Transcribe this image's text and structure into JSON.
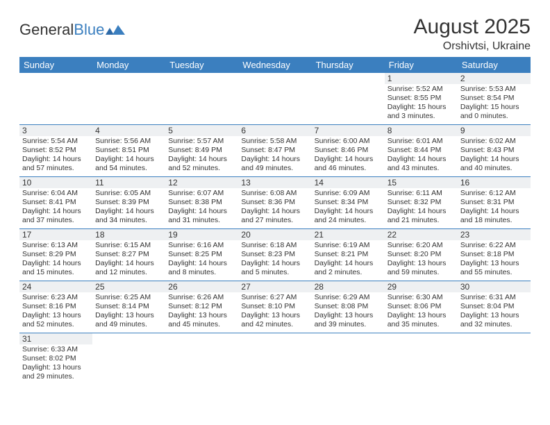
{
  "logo": {
    "text_general": "General",
    "text_blue": "Blue"
  },
  "title": "August 2025",
  "location": "Orshivtsi, Ukraine",
  "header_bg": "#3b7fbf",
  "daynum_bg": "#eef0f2",
  "days_of_week": [
    "Sunday",
    "Monday",
    "Tuesday",
    "Wednesday",
    "Thursday",
    "Friday",
    "Saturday"
  ],
  "weeks": [
    [
      null,
      null,
      null,
      null,
      null,
      {
        "n": "1",
        "sr": "Sunrise: 5:52 AM",
        "ss": "Sunset: 8:55 PM",
        "d1": "Daylight: 15 hours",
        "d2": "and 3 minutes."
      },
      {
        "n": "2",
        "sr": "Sunrise: 5:53 AM",
        "ss": "Sunset: 8:54 PM",
        "d1": "Daylight: 15 hours",
        "d2": "and 0 minutes."
      }
    ],
    [
      {
        "n": "3",
        "sr": "Sunrise: 5:54 AM",
        "ss": "Sunset: 8:52 PM",
        "d1": "Daylight: 14 hours",
        "d2": "and 57 minutes."
      },
      {
        "n": "4",
        "sr": "Sunrise: 5:56 AM",
        "ss": "Sunset: 8:51 PM",
        "d1": "Daylight: 14 hours",
        "d2": "and 54 minutes."
      },
      {
        "n": "5",
        "sr": "Sunrise: 5:57 AM",
        "ss": "Sunset: 8:49 PM",
        "d1": "Daylight: 14 hours",
        "d2": "and 52 minutes."
      },
      {
        "n": "6",
        "sr": "Sunrise: 5:58 AM",
        "ss": "Sunset: 8:47 PM",
        "d1": "Daylight: 14 hours",
        "d2": "and 49 minutes."
      },
      {
        "n": "7",
        "sr": "Sunrise: 6:00 AM",
        "ss": "Sunset: 8:46 PM",
        "d1": "Daylight: 14 hours",
        "d2": "and 46 minutes."
      },
      {
        "n": "8",
        "sr": "Sunrise: 6:01 AM",
        "ss": "Sunset: 8:44 PM",
        "d1": "Daylight: 14 hours",
        "d2": "and 43 minutes."
      },
      {
        "n": "9",
        "sr": "Sunrise: 6:02 AM",
        "ss": "Sunset: 8:43 PM",
        "d1": "Daylight: 14 hours",
        "d2": "and 40 minutes."
      }
    ],
    [
      {
        "n": "10",
        "sr": "Sunrise: 6:04 AM",
        "ss": "Sunset: 8:41 PM",
        "d1": "Daylight: 14 hours",
        "d2": "and 37 minutes."
      },
      {
        "n": "11",
        "sr": "Sunrise: 6:05 AM",
        "ss": "Sunset: 8:39 PM",
        "d1": "Daylight: 14 hours",
        "d2": "and 34 minutes."
      },
      {
        "n": "12",
        "sr": "Sunrise: 6:07 AM",
        "ss": "Sunset: 8:38 PM",
        "d1": "Daylight: 14 hours",
        "d2": "and 31 minutes."
      },
      {
        "n": "13",
        "sr": "Sunrise: 6:08 AM",
        "ss": "Sunset: 8:36 PM",
        "d1": "Daylight: 14 hours",
        "d2": "and 27 minutes."
      },
      {
        "n": "14",
        "sr": "Sunrise: 6:09 AM",
        "ss": "Sunset: 8:34 PM",
        "d1": "Daylight: 14 hours",
        "d2": "and 24 minutes."
      },
      {
        "n": "15",
        "sr": "Sunrise: 6:11 AM",
        "ss": "Sunset: 8:32 PM",
        "d1": "Daylight: 14 hours",
        "d2": "and 21 minutes."
      },
      {
        "n": "16",
        "sr": "Sunrise: 6:12 AM",
        "ss": "Sunset: 8:31 PM",
        "d1": "Daylight: 14 hours",
        "d2": "and 18 minutes."
      }
    ],
    [
      {
        "n": "17",
        "sr": "Sunrise: 6:13 AM",
        "ss": "Sunset: 8:29 PM",
        "d1": "Daylight: 14 hours",
        "d2": "and 15 minutes."
      },
      {
        "n": "18",
        "sr": "Sunrise: 6:15 AM",
        "ss": "Sunset: 8:27 PM",
        "d1": "Daylight: 14 hours",
        "d2": "and 12 minutes."
      },
      {
        "n": "19",
        "sr": "Sunrise: 6:16 AM",
        "ss": "Sunset: 8:25 PM",
        "d1": "Daylight: 14 hours",
        "d2": "and 8 minutes."
      },
      {
        "n": "20",
        "sr": "Sunrise: 6:18 AM",
        "ss": "Sunset: 8:23 PM",
        "d1": "Daylight: 14 hours",
        "d2": "and 5 minutes."
      },
      {
        "n": "21",
        "sr": "Sunrise: 6:19 AM",
        "ss": "Sunset: 8:21 PM",
        "d1": "Daylight: 14 hours",
        "d2": "and 2 minutes."
      },
      {
        "n": "22",
        "sr": "Sunrise: 6:20 AM",
        "ss": "Sunset: 8:20 PM",
        "d1": "Daylight: 13 hours",
        "d2": "and 59 minutes."
      },
      {
        "n": "23",
        "sr": "Sunrise: 6:22 AM",
        "ss": "Sunset: 8:18 PM",
        "d1": "Daylight: 13 hours",
        "d2": "and 55 minutes."
      }
    ],
    [
      {
        "n": "24",
        "sr": "Sunrise: 6:23 AM",
        "ss": "Sunset: 8:16 PM",
        "d1": "Daylight: 13 hours",
        "d2": "and 52 minutes."
      },
      {
        "n": "25",
        "sr": "Sunrise: 6:25 AM",
        "ss": "Sunset: 8:14 PM",
        "d1": "Daylight: 13 hours",
        "d2": "and 49 minutes."
      },
      {
        "n": "26",
        "sr": "Sunrise: 6:26 AM",
        "ss": "Sunset: 8:12 PM",
        "d1": "Daylight: 13 hours",
        "d2": "and 45 minutes."
      },
      {
        "n": "27",
        "sr": "Sunrise: 6:27 AM",
        "ss": "Sunset: 8:10 PM",
        "d1": "Daylight: 13 hours",
        "d2": "and 42 minutes."
      },
      {
        "n": "28",
        "sr": "Sunrise: 6:29 AM",
        "ss": "Sunset: 8:08 PM",
        "d1": "Daylight: 13 hours",
        "d2": "and 39 minutes."
      },
      {
        "n": "29",
        "sr": "Sunrise: 6:30 AM",
        "ss": "Sunset: 8:06 PM",
        "d1": "Daylight: 13 hours",
        "d2": "and 35 minutes."
      },
      {
        "n": "30",
        "sr": "Sunrise: 6:31 AM",
        "ss": "Sunset: 8:04 PM",
        "d1": "Daylight: 13 hours",
        "d2": "and 32 minutes."
      }
    ],
    [
      {
        "n": "31",
        "sr": "Sunrise: 6:33 AM",
        "ss": "Sunset: 8:02 PM",
        "d1": "Daylight: 13 hours",
        "d2": "and 29 minutes."
      },
      null,
      null,
      null,
      null,
      null,
      null
    ]
  ]
}
